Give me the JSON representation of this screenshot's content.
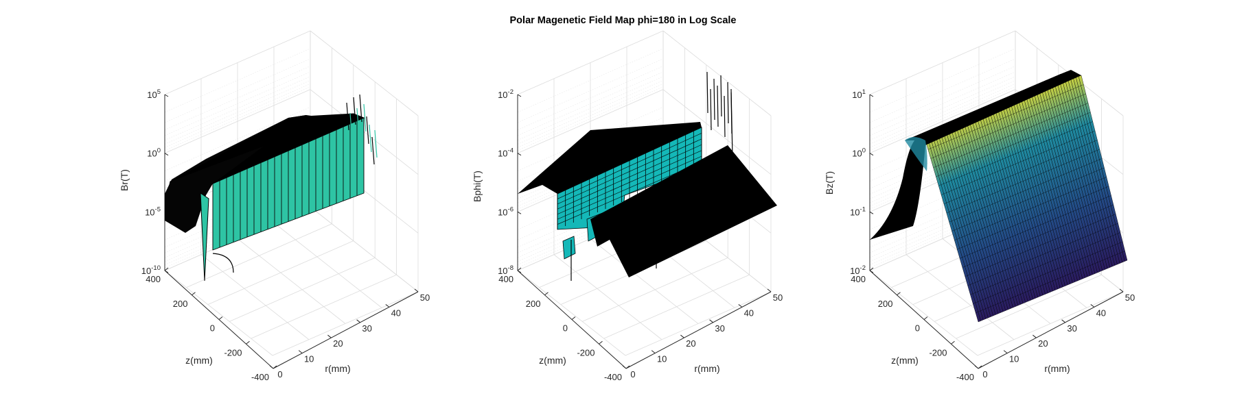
{
  "title": "Polar Magenetic Field Map phi=180 in Log Scale",
  "chart_data": [
    {
      "type": "surface",
      "zscale": "log",
      "xlabel": "r(mm)",
      "ylabel": "z(mm)",
      "zlabel": "Br(T)",
      "x_ticks": [
        "0",
        "10",
        "20",
        "30",
        "40",
        "50"
      ],
      "y_ticks": [
        "400",
        "200",
        "0",
        "-200",
        "-400"
      ],
      "z_ticks": [
        {
          "base": "10",
          "exp": "5"
        },
        {
          "base": "10",
          "exp": "0"
        },
        {
          "base": "10",
          "exp": "-5"
        },
        {
          "base": "10",
          "exp": "-10"
        }
      ],
      "xlim": [
        0,
        50
      ],
      "ylim": [
        -400,
        400
      ],
      "zlim": [
        1e-10,
        100000.0
      ],
      "grid": true,
      "colors": {
        "face": "#2ec4a4",
        "edge": "#000000"
      }
    },
    {
      "type": "surface",
      "zscale": "log",
      "xlabel": "r(mm)",
      "ylabel": "z(mm)",
      "zlabel": "Bphi(T)",
      "x_ticks": [
        "0",
        "10",
        "20",
        "30",
        "40",
        "50"
      ],
      "y_ticks": [
        "400",
        "200",
        "0",
        "-200",
        "-400"
      ],
      "z_ticks": [
        {
          "base": "10",
          "exp": "-2"
        },
        {
          "base": "10",
          "exp": "-4"
        },
        {
          "base": "10",
          "exp": "-6"
        },
        {
          "base": "10",
          "exp": "-8"
        }
      ],
      "xlim": [
        0,
        50
      ],
      "ylim": [
        -400,
        400
      ],
      "zlim": [
        1e-08,
        0.01
      ],
      "grid": true,
      "colors": {
        "face": "#14b8b8",
        "edge": "#000000"
      }
    },
    {
      "type": "surface",
      "zscale": "log",
      "xlabel": "r(mm)",
      "ylabel": "z(mm)",
      "zlabel": "Bz(T)",
      "x_ticks": [
        "0",
        "10",
        "20",
        "30",
        "40",
        "50"
      ],
      "y_ticks": [
        "400",
        "200",
        "0",
        "-200",
        "-400"
      ],
      "z_ticks": [
        {
          "base": "10",
          "exp": "1"
        },
        {
          "base": "10",
          "exp": "0"
        },
        {
          "base": "10",
          "exp": "-1"
        },
        {
          "base": "10",
          "exp": "-2"
        }
      ],
      "xlim": [
        0,
        50
      ],
      "ylim": [
        -400,
        400
      ],
      "zlim": [
        0.01,
        10.0
      ],
      "grid": true,
      "colors": {
        "face_low": "#2a1a5e",
        "face_mid": "#1f8aa0",
        "face_high": "#c8d040",
        "edge": "#000000"
      }
    }
  ]
}
